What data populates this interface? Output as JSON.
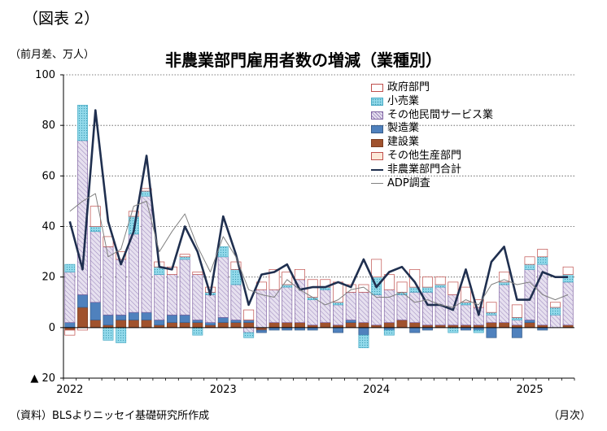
{
  "page": {
    "figure_label": "（図表 2）",
    "unit_label": "（前月差、万人）",
    "title": "非農業部門雇用者数の増減（業種別）",
    "source": "（資料）BLSよりニッセイ基礎研究所作成",
    "x_unit": "（月次）"
  },
  "colors": {
    "政府部門": {
      "fill": "#ffffff",
      "stroke": "#c0504d"
    },
    "小売業": {
      "fill": "#92d9ea",
      "stroke": "#4bacc6",
      "pattern": "dots"
    },
    "その他民間サービス業": {
      "fill": "#e6e0ef",
      "stroke": "#8064a2",
      "pattern": "diagonal"
    },
    "製造業": {
      "fill": "#4f81bd",
      "stroke": "#385d8a"
    },
    "建設業": {
      "fill": "#a0522d",
      "stroke": "#7a3e22"
    },
    "その他生産部門": {
      "fill": "#fde9d9",
      "stroke": "#c0504d"
    },
    "非農業部門合計": {
      "stroke": "#1f2f4f"
    },
    "ADP調査": {
      "stroke": "#808080"
    }
  },
  "chart_data": {
    "type": "bar",
    "stacked": true,
    "x_tick_labels": [
      "2022",
      "2023",
      "2024",
      "2025"
    ],
    "x_tick_month_index": [
      0,
      12,
      24,
      36
    ],
    "months": [
      "2022-01",
      "2022-02",
      "2022-03",
      "2022-04",
      "2022-05",
      "2022-06",
      "2022-07",
      "2022-08",
      "2022-09",
      "2022-10",
      "2022-11",
      "2022-12",
      "2023-01",
      "2023-02",
      "2023-03",
      "2023-04",
      "2023-05",
      "2023-06",
      "2023-07",
      "2023-08",
      "2023-09",
      "2023-10",
      "2023-11",
      "2023-12",
      "2024-01",
      "2024-02",
      "2024-03",
      "2024-04",
      "2024-05",
      "2024-06",
      "2024-07",
      "2024-08",
      "2024-09",
      "2024-10",
      "2024-11",
      "2024-12",
      "2025-01",
      "2025-02",
      "2025-03",
      "2025-04"
    ],
    "ylim": [
      -20,
      100
    ],
    "y_ticks": [
      -20,
      0,
      20,
      40,
      60,
      80,
      100
    ],
    "y_tick_labels": [
      "▲ 20",
      "0",
      "20",
      "40",
      "60",
      "80",
      "100"
    ],
    "grid": true,
    "legend_position": "top-right",
    "bar_series": [
      {
        "name": "建設業",
        "values": [
          -1,
          8,
          3,
          1,
          3,
          3,
          3,
          1,
          2,
          2,
          2,
          1,
          2,
          2,
          2,
          -1,
          2,
          2,
          2,
          1,
          2,
          1,
          2,
          2,
          1,
          2,
          3,
          2,
          1,
          1,
          1,
          1,
          1,
          2,
          2,
          1,
          2,
          1,
          0,
          1
        ]
      },
      {
        "name": "製造業",
        "values": [
          2,
          5,
          7,
          4,
          2,
          3,
          3,
          2,
          3,
          3,
          1,
          1,
          2,
          1,
          1,
          -1,
          -1,
          -1,
          -1,
          -1,
          0,
          -2,
          1,
          -3,
          0,
          -1,
          0,
          -2,
          -1,
          0,
          0,
          -1,
          -1,
          -4,
          0,
          -4,
          1,
          -1,
          0,
          0
        ]
      },
      {
        "name": "その他生産部門",
        "values": [
          0,
          0,
          0,
          0,
          0,
          0,
          0,
          0,
          0,
          0,
          0,
          0,
          0,
          0,
          0,
          0,
          0,
          0,
          0,
          0,
          0,
          0,
          0,
          0,
          0,
          0,
          0,
          0,
          0,
          0,
          0,
          0,
          0,
          0,
          0,
          0,
          0,
          0,
          0,
          0
        ]
      },
      {
        "name": "その他民間サービス業",
        "values": [
          20,
          61,
          28,
          27,
          22,
          31,
          46,
          18,
          16,
          22,
          18,
          11,
          24,
          14,
          -2,
          15,
          13,
          14,
          17,
          10,
          13,
          8,
          11,
          12,
          12,
          13,
          10,
          12,
          13,
          15,
          12,
          8,
          7,
          3,
          15,
          2,
          20,
          24,
          5,
          17
        ]
      },
      {
        "name": "小売業",
        "values": [
          3,
          14,
          2,
          -5,
          -6,
          7,
          2,
          3,
          0,
          1,
          -3,
          1,
          4,
          6,
          -2,
          0,
          0,
          1,
          0,
          1,
          1,
          1,
          0,
          -5,
          7,
          -2,
          1,
          2,
          2,
          1,
          -2,
          1,
          -1,
          1,
          1,
          1,
          2,
          3,
          3,
          3
        ]
      },
      {
        "name": "政府部門",
        "values": [
          -2,
          -1,
          8,
          4,
          3,
          2,
          1,
          2,
          3,
          1,
          1,
          2,
          0,
          3,
          4,
          3,
          8,
          5,
          4,
          7,
          3,
          8,
          3,
          3,
          7,
          6,
          4,
          7,
          4,
          3,
          5,
          6,
          3,
          4,
          4,
          5,
          3,
          3,
          2,
          3
        ]
      }
    ],
    "line_series": [
      {
        "name": "非農業部門合計",
        "values": [
          42,
          23,
          86,
          42,
          25,
          38,
          68,
          24,
          23,
          40,
          30,
          13,
          44,
          29,
          9,
          21,
          22,
          25,
          15,
          16,
          16,
          18,
          16,
          27,
          16,
          22,
          24,
          18,
          9,
          9,
          7,
          23,
          5,
          26,
          32,
          11,
          11,
          22,
          20,
          20
        ]
      },
      {
        "name": "ADP調査",
        "values": [
          46,
          50,
          53,
          28,
          31,
          48,
          50,
          30,
          38,
          45,
          32,
          22,
          36,
          28,
          15,
          13,
          12,
          19,
          15,
          12,
          9,
          11,
          15,
          16,
          12,
          12,
          14,
          10,
          11,
          9,
          8,
          11,
          9,
          17,
          19,
          17,
          18,
          13,
          11,
          13
        ]
      }
    ]
  }
}
